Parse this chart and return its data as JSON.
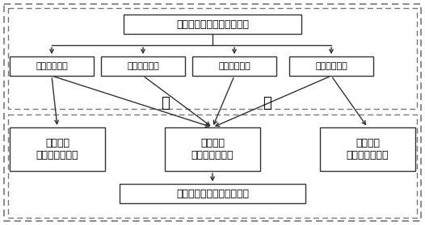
{
  "title_box": "空中目标风场扰动特征参数",
  "feature_boxes": [
    "尾涡涡核位置",
    "尾涡涡核半径",
    "尾涡涡核间距",
    "尾涡涡流环量"
  ],
  "output_boxes": [
    {
      "label": "航迹特征\n（航向、航迹）"
    },
    {
      "label": "物理特征\n（重量、翼展）"
    },
    {
      "label": "运动特征\n（高度、速度）"
    }
  ],
  "bottom_box": "空中目标类型识别特征参数",
  "label_fan": "反",
  "label_yan": "演",
  "dashed_color": "#777777",
  "arrow_color": "#333333",
  "box_edge_color": "#333333",
  "bg_color": "#ffffff",
  "font_size_title": 9,
  "font_size_feat": 8,
  "font_size_out": 9,
  "font_size_label": 13
}
